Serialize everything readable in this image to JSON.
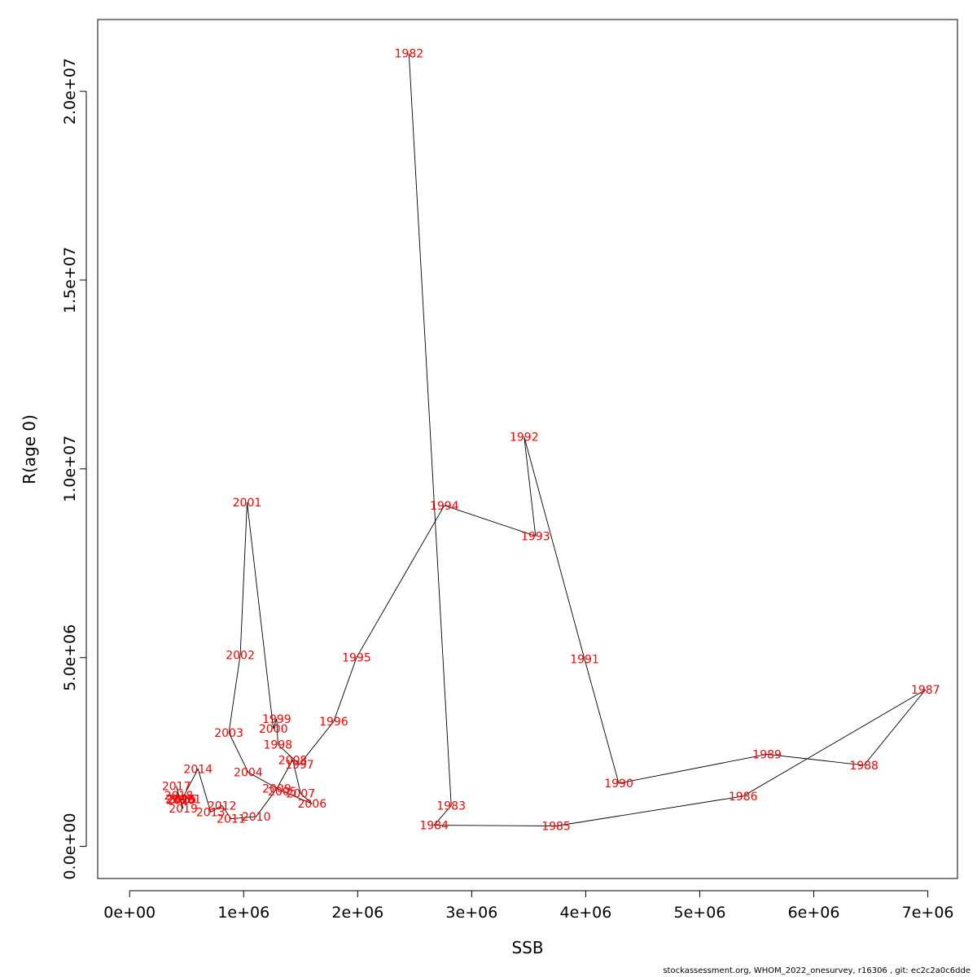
{
  "chart_data": {
    "type": "line",
    "xlabel": "SSB",
    "ylabel": "R(age 0)",
    "xlim": [
      -280000,
      7260000
    ],
    "ylim": [
      -850000,
      21900000
    ],
    "x_ticks": [
      0,
      1000000,
      2000000,
      3000000,
      4000000,
      5000000,
      6000000,
      7000000
    ],
    "x_tick_labels": [
      "0e+00",
      "1e+06",
      "2e+06",
      "3e+06",
      "4e+06",
      "5e+06",
      "6e+06",
      "7e+06"
    ],
    "y_ticks": [
      0,
      5000000,
      10000000,
      15000000,
      20000000
    ],
    "y_tick_labels": [
      "0.0e+00",
      "5.0e+06",
      "1.0e+07",
      "1.5e+07",
      "2.0e+07"
    ],
    "grid": false,
    "legend": "none",
    "line_color": "#000000",
    "label_color": "#ff0000",
    "points": [
      {
        "label": "1982",
        "x": 2450000,
        "y": 21000000
      },
      {
        "label": "1983",
        "x": 2820000,
        "y": 1080000
      },
      {
        "label": "1984",
        "x": 2670000,
        "y": 560000
      },
      {
        "label": "1985",
        "x": 3740000,
        "y": 540000
      },
      {
        "label": "1986",
        "x": 5380000,
        "y": 1330000
      },
      {
        "label": "1987",
        "x": 6980000,
        "y": 4150000
      },
      {
        "label": "1988",
        "x": 6440000,
        "y": 2150000
      },
      {
        "label": "1989",
        "x": 5590000,
        "y": 2440000
      },
      {
        "label": "1990",
        "x": 4290000,
        "y": 1670000
      },
      {
        "label": "1991",
        "x": 3990000,
        "y": 4960000
      },
      {
        "label": "1992",
        "x": 3460000,
        "y": 10850000
      },
      {
        "label": "1993",
        "x": 3560000,
        "y": 8220000
      },
      {
        "label": "1994",
        "x": 2760000,
        "y": 9030000
      },
      {
        "label": "1995",
        "x": 1990000,
        "y": 5000000
      },
      {
        "label": "1996",
        "x": 1790000,
        "y": 3310000
      },
      {
        "label": "1997",
        "x": 1490000,
        "y": 2170000
      },
      {
        "label": "1998",
        "x": 1300000,
        "y": 2700000
      },
      {
        "label": "1999",
        "x": 1290000,
        "y": 3380000
      },
      {
        "label": "2000",
        "x": 1260000,
        "y": 3120000
      },
      {
        "label": "2001",
        "x": 1030000,
        "y": 9110000
      },
      {
        "label": "2002",
        "x": 970000,
        "y": 5070000
      },
      {
        "label": "2003",
        "x": 870000,
        "y": 3010000
      },
      {
        "label": "2004",
        "x": 1040000,
        "y": 1960000
      },
      {
        "label": "2005",
        "x": 1340000,
        "y": 1460000
      },
      {
        "label": "2006",
        "x": 1600000,
        "y": 1130000
      },
      {
        "label": "2007",
        "x": 1500000,
        "y": 1400000
      },
      {
        "label": "2008",
        "x": 1430000,
        "y": 2290000
      },
      {
        "label": "2009",
        "x": 1290000,
        "y": 1530000
      },
      {
        "label": "2010",
        "x": 1110000,
        "y": 790000
      },
      {
        "label": "2011",
        "x": 890000,
        "y": 730000
      },
      {
        "label": "2012",
        "x": 810000,
        "y": 1080000
      },
      {
        "label": "2013",
        "x": 710000,
        "y": 910000
      },
      {
        "label": "2014",
        "x": 600000,
        "y": 2050000
      },
      {
        "label": "2015",
        "x": 460000,
        "y": 1250000
      },
      {
        "label": "2016",
        "x": 440000,
        "y": 1250000
      },
      {
        "label": "2017",
        "x": 410000,
        "y": 1600000
      },
      {
        "label": "2018",
        "x": 430000,
        "y": 1350000
      },
      {
        "label": "2019",
        "x": 470000,
        "y": 1000000
      },
      {
        "label": "2020",
        "x": 450000,
        "y": 1230000
      },
      {
        "label": "2021",
        "x": 500000,
        "y": 1250000
      }
    ]
  },
  "footer": "stockassessment.org, WHOM_2022_onesurvey, r16306 , git: ec2c2a0c6dde"
}
